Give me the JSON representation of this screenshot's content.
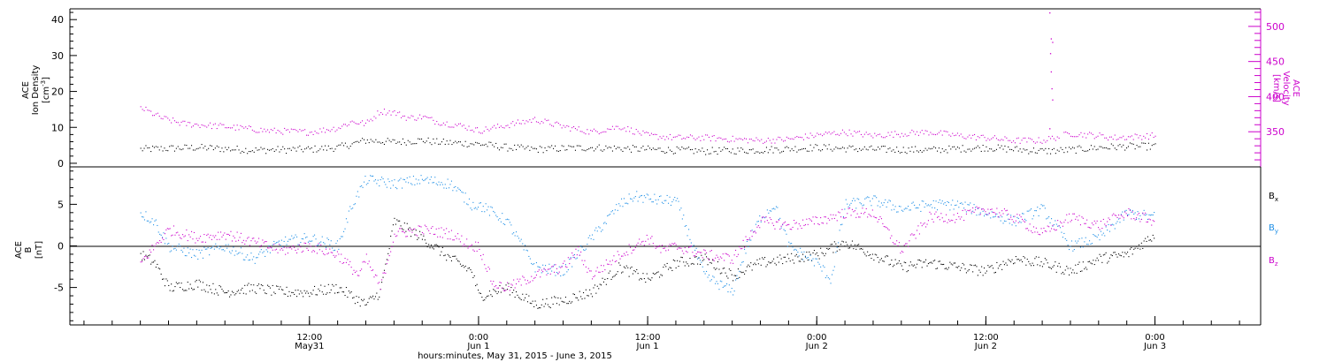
{
  "chart_data": [
    {
      "type": "scatter",
      "panel": "top",
      "left_axis": {
        "label_lines": [
          "ACE",
          "Ion Density"
        ],
        "unit": "[cm",
        "unit_sup": "-3",
        "unit_close": "]",
        "ylim": [
          -1,
          43
        ],
        "ticks": [
          0,
          10,
          20,
          30,
          40
        ],
        "color": "#000000"
      },
      "right_axis": {
        "label_lines": [
          "ACE",
          "Velocity",
          "[km/s]"
        ],
        "ylim": [
          300,
          525
        ],
        "ticks": [
          350,
          400,
          450,
          500
        ],
        "color": "#cc00cc"
      },
      "series": [
        {
          "color": "#000000",
          "axis": "left",
          "keypoints": [
            [
              0.0,
              4.0
            ],
            [
              4.0,
              4.5
            ],
            [
              8.0,
              3.8
            ],
            [
              12.0,
              4.0
            ],
            [
              14.0,
              4.5
            ],
            [
              16.0,
              6.5
            ],
            [
              18.0,
              6.0
            ],
            [
              20.0,
              6.5
            ],
            [
              21.0,
              6.0
            ],
            [
              24.0,
              5.5
            ],
            [
              26.0,
              4.5
            ],
            [
              28.0,
              4.0
            ],
            [
              32.0,
              4.5
            ],
            [
              36.0,
              4.0
            ],
            [
              40.0,
              3.5
            ],
            [
              44.0,
              3.8
            ],
            [
              48.0,
              4.5
            ],
            [
              52.0,
              4.0
            ],
            [
              56.0,
              3.8
            ],
            [
              60.0,
              4.5
            ],
            [
              64.0,
              3.5
            ],
            [
              66.0,
              3.8
            ],
            [
              68.0,
              4.5
            ],
            [
              70.0,
              4.8
            ],
            [
              72.0,
              4.8
            ]
          ]
        },
        {
          "color": "#cc00cc",
          "axis": "right",
          "keypoints": [
            [
              0.0,
              385
            ],
            [
              1.5,
              370
            ],
            [
              3.0,
              362
            ],
            [
              6.0,
              358
            ],
            [
              9.0,
              352
            ],
            [
              12.0,
              350
            ],
            [
              14.0,
              356
            ],
            [
              15.0,
              365
            ],
            [
              16.0,
              362
            ],
            [
              17.0,
              380
            ],
            [
              18.0,
              378
            ],
            [
              19.0,
              370
            ],
            [
              20.0,
              372
            ],
            [
              21.0,
              365
            ],
            [
              23.0,
              358
            ],
            [
              24.0,
              352
            ],
            [
              26.0,
              360
            ],
            [
              28.0,
              368
            ],
            [
              30.0,
              358
            ],
            [
              32.0,
              350
            ],
            [
              34.0,
              358
            ],
            [
              36.0,
              345
            ],
            [
              38.0,
              342
            ],
            [
              40.0,
              342
            ],
            [
              42.0,
              340
            ],
            [
              44.0,
              338
            ],
            [
              46.0,
              340
            ],
            [
              48.0,
              346
            ],
            [
              50.0,
              350
            ],
            [
              52.0,
              345
            ],
            [
              54.0,
              348
            ],
            [
              56.0,
              350
            ],
            [
              58.0,
              345
            ],
            [
              60.0,
              342
            ],
            [
              62.0,
              338
            ],
            [
              64.0,
              338
            ],
            [
              66.0,
              348
            ],
            [
              68.0,
              345
            ],
            [
              69.0,
              342
            ],
            [
              72.0,
              345
            ]
          ],
          "gaps": [
            [
              65.2,
              65.5
            ]
          ],
          "extra_points": [
            [
              64.5,
              520
            ],
            [
              64.6,
              483
            ],
            [
              64.7,
              478
            ],
            [
              64.55,
              462
            ],
            [
              64.6,
              436
            ],
            [
              64.65,
              412
            ],
            [
              64.7,
              396
            ],
            [
              64.5,
              355
            ]
          ]
        }
      ]
    },
    {
      "type": "scatter",
      "panel": "bottom",
      "left_axis": {
        "label_lines": [
          "ACE",
          "B"
        ],
        "unit": "[nT]",
        "ylim": [
          -9.5,
          9.5
        ],
        "ticks": [
          -5,
          0,
          5
        ],
        "zero_line": true,
        "color": "#000000"
      },
      "legend": {
        "placement": "right",
        "entries": [
          {
            "name": "B",
            "sub": "x",
            "color": "#000000"
          },
          {
            "name": "B",
            "sub": "y",
            "color": "#1e8fe6"
          },
          {
            "name": "B",
            "sub": "z",
            "color": "#cc00cc"
          }
        ]
      },
      "series": [
        {
          "name": "Bx",
          "color": "#000000",
          "keypoints": [
            [
              0.0,
              -1.0
            ],
            [
              1.0,
              -2.0
            ],
            [
              2.0,
              -5.0
            ],
            [
              4.0,
              -4.5
            ],
            [
              6.0,
              -5.5
            ],
            [
              8.0,
              -5.0
            ],
            [
              10.0,
              -5.5
            ],
            [
              12.0,
              -5.5
            ],
            [
              14.0,
              -5.0
            ],
            [
              16.0,
              -7.0
            ],
            [
              17.0,
              -5.5
            ],
            [
              18.0,
              3.0
            ],
            [
              20.0,
              1.0
            ],
            [
              22.0,
              -1.5
            ],
            [
              23.5,
              -3.0
            ],
            [
              24.0,
              -6.0
            ],
            [
              26.0,
              -5.0
            ],
            [
              28.0,
              -7.0
            ],
            [
              30.0,
              -6.5
            ],
            [
              32.0,
              -5.5
            ],
            [
              34.0,
              -2.5
            ],
            [
              36.0,
              -4.0
            ],
            [
              38.0,
              -2.0
            ],
            [
              40.0,
              -1.5
            ],
            [
              42.0,
              -3.5
            ],
            [
              44.0,
              -2.0
            ],
            [
              46.0,
              -1.5
            ],
            [
              48.0,
              -1.0
            ],
            [
              50.0,
              0.5
            ],
            [
              52.0,
              -1.0
            ],
            [
              54.0,
              -2.5
            ],
            [
              56.0,
              -2.0
            ],
            [
              58.0,
              -2.5
            ],
            [
              60.0,
              -3.0
            ],
            [
              62.0,
              -1.5
            ],
            [
              64.0,
              -2.0
            ],
            [
              66.0,
              -3.0
            ],
            [
              68.0,
              -1.5
            ],
            [
              70.0,
              -1.0
            ],
            [
              72.0,
              1.5
            ]
          ]
        },
        {
          "name": "By",
          "color": "#1e8fe6",
          "keypoints": [
            [
              0.0,
              4.0
            ],
            [
              1.0,
              3.0
            ],
            [
              2.0,
              0.0
            ],
            [
              4.0,
              -1.0
            ],
            [
              6.0,
              0.0
            ],
            [
              8.0,
              -1.5
            ],
            [
              10.0,
              0.5
            ],
            [
              12.0,
              1.0
            ],
            [
              14.0,
              0.0
            ],
            [
              15.0,
              5.0
            ],
            [
              16.0,
              8.0
            ],
            [
              18.0,
              7.5
            ],
            [
              20.0,
              8.0
            ],
            [
              22.0,
              7.5
            ],
            [
              23.5,
              5.0
            ],
            [
              24.0,
              5.0
            ],
            [
              26.0,
              3.0
            ],
            [
              28.0,
              -2.5
            ],
            [
              30.0,
              -3.0
            ],
            [
              32.0,
              1.0
            ],
            [
              34.0,
              5.0
            ],
            [
              35.0,
              6.0
            ],
            [
              37.0,
              5.5
            ],
            [
              38.0,
              5.5
            ],
            [
              39.0,
              1.0
            ],
            [
              40.0,
              -3.5
            ],
            [
              42.0,
              -5.5
            ],
            [
              43.0,
              0.0
            ],
            [
              44.0,
              3.5
            ],
            [
              45.0,
              5.0
            ],
            [
              46.0,
              0.0
            ],
            [
              48.0,
              -2.0
            ],
            [
              49.0,
              -4.0
            ],
            [
              50.0,
              5.0
            ],
            [
              52.0,
              5.5
            ],
            [
              54.0,
              4.5
            ],
            [
              56.0,
              5.0
            ],
            [
              58.0,
              5.0
            ],
            [
              60.0,
              4.0
            ],
            [
              62.0,
              3.0
            ],
            [
              64.0,
              4.5
            ],
            [
              66.0,
              0.0
            ],
            [
              68.0,
              1.0
            ],
            [
              70.0,
              4.0
            ],
            [
              72.0,
              3.5
            ]
          ]
        },
        {
          "name": "Bz",
          "color": "#cc00cc",
          "keypoints": [
            [
              0.0,
              -2.0
            ],
            [
              2.0,
              2.0
            ],
            [
              4.0,
              1.0
            ],
            [
              6.0,
              1.5
            ],
            [
              8.0,
              0.5
            ],
            [
              10.0,
              -0.5
            ],
            [
              12.0,
              0.0
            ],
            [
              14.0,
              -1.0
            ],
            [
              15.5,
              -3.5
            ],
            [
              16.0,
              -1.5
            ],
            [
              17.0,
              -5.0
            ],
            [
              18.0,
              1.5
            ],
            [
              20.0,
              2.0
            ],
            [
              22.0,
              1.5
            ],
            [
              23.5,
              0.0
            ],
            [
              24.0,
              0.0
            ],
            [
              25.0,
              -4.5
            ],
            [
              26.0,
              -5.0
            ],
            [
              28.0,
              -3.5
            ],
            [
              30.0,
              -2.5
            ],
            [
              31.0,
              -0.5
            ],
            [
              32.0,
              -3.5
            ],
            [
              34.0,
              -1.0
            ],
            [
              36.0,
              1.0
            ],
            [
              37.0,
              -0.5
            ],
            [
              38.0,
              0.0
            ],
            [
              40.0,
              -1.0
            ],
            [
              42.0,
              -1.5
            ],
            [
              44.0,
              3.0
            ],
            [
              46.0,
              2.5
            ],
            [
              48.0,
              3.0
            ],
            [
              50.0,
              4.0
            ],
            [
              52.0,
              4.0
            ],
            [
              54.0,
              -0.5
            ],
            [
              56.0,
              3.5
            ],
            [
              58.0,
              3.5
            ],
            [
              60.0,
              4.5
            ],
            [
              62.0,
              3.5
            ],
            [
              64.0,
              1.5
            ],
            [
              66.0,
              3.5
            ],
            [
              68.0,
              2.5
            ],
            [
              70.0,
              4.0
            ],
            [
              72.0,
              3.0
            ]
          ]
        }
      ]
    }
  ],
  "x_axis": {
    "range_hours": [
      -5.0,
      79.5
    ],
    "data_end_hour": 72.0,
    "major_ticks": [
      {
        "hour": 12,
        "time": "12:00",
        "day": "May31"
      },
      {
        "hour": 24,
        "time": "0:00",
        "day": "Jun 1"
      },
      {
        "hour": 36,
        "time": "12:00",
        "day": "Jun 1"
      },
      {
        "hour": 48,
        "time": "0:00",
        "day": "Jun 2"
      },
      {
        "hour": 60,
        "time": "12:00",
        "day": "Jun 2"
      },
      {
        "hour": 72,
        "time": "0:00",
        "day": "Jun 3"
      }
    ],
    "minor_tick_every_hours": 2,
    "title": "hours:minutes, May 31, 2015 - June  3, 2015"
  }
}
